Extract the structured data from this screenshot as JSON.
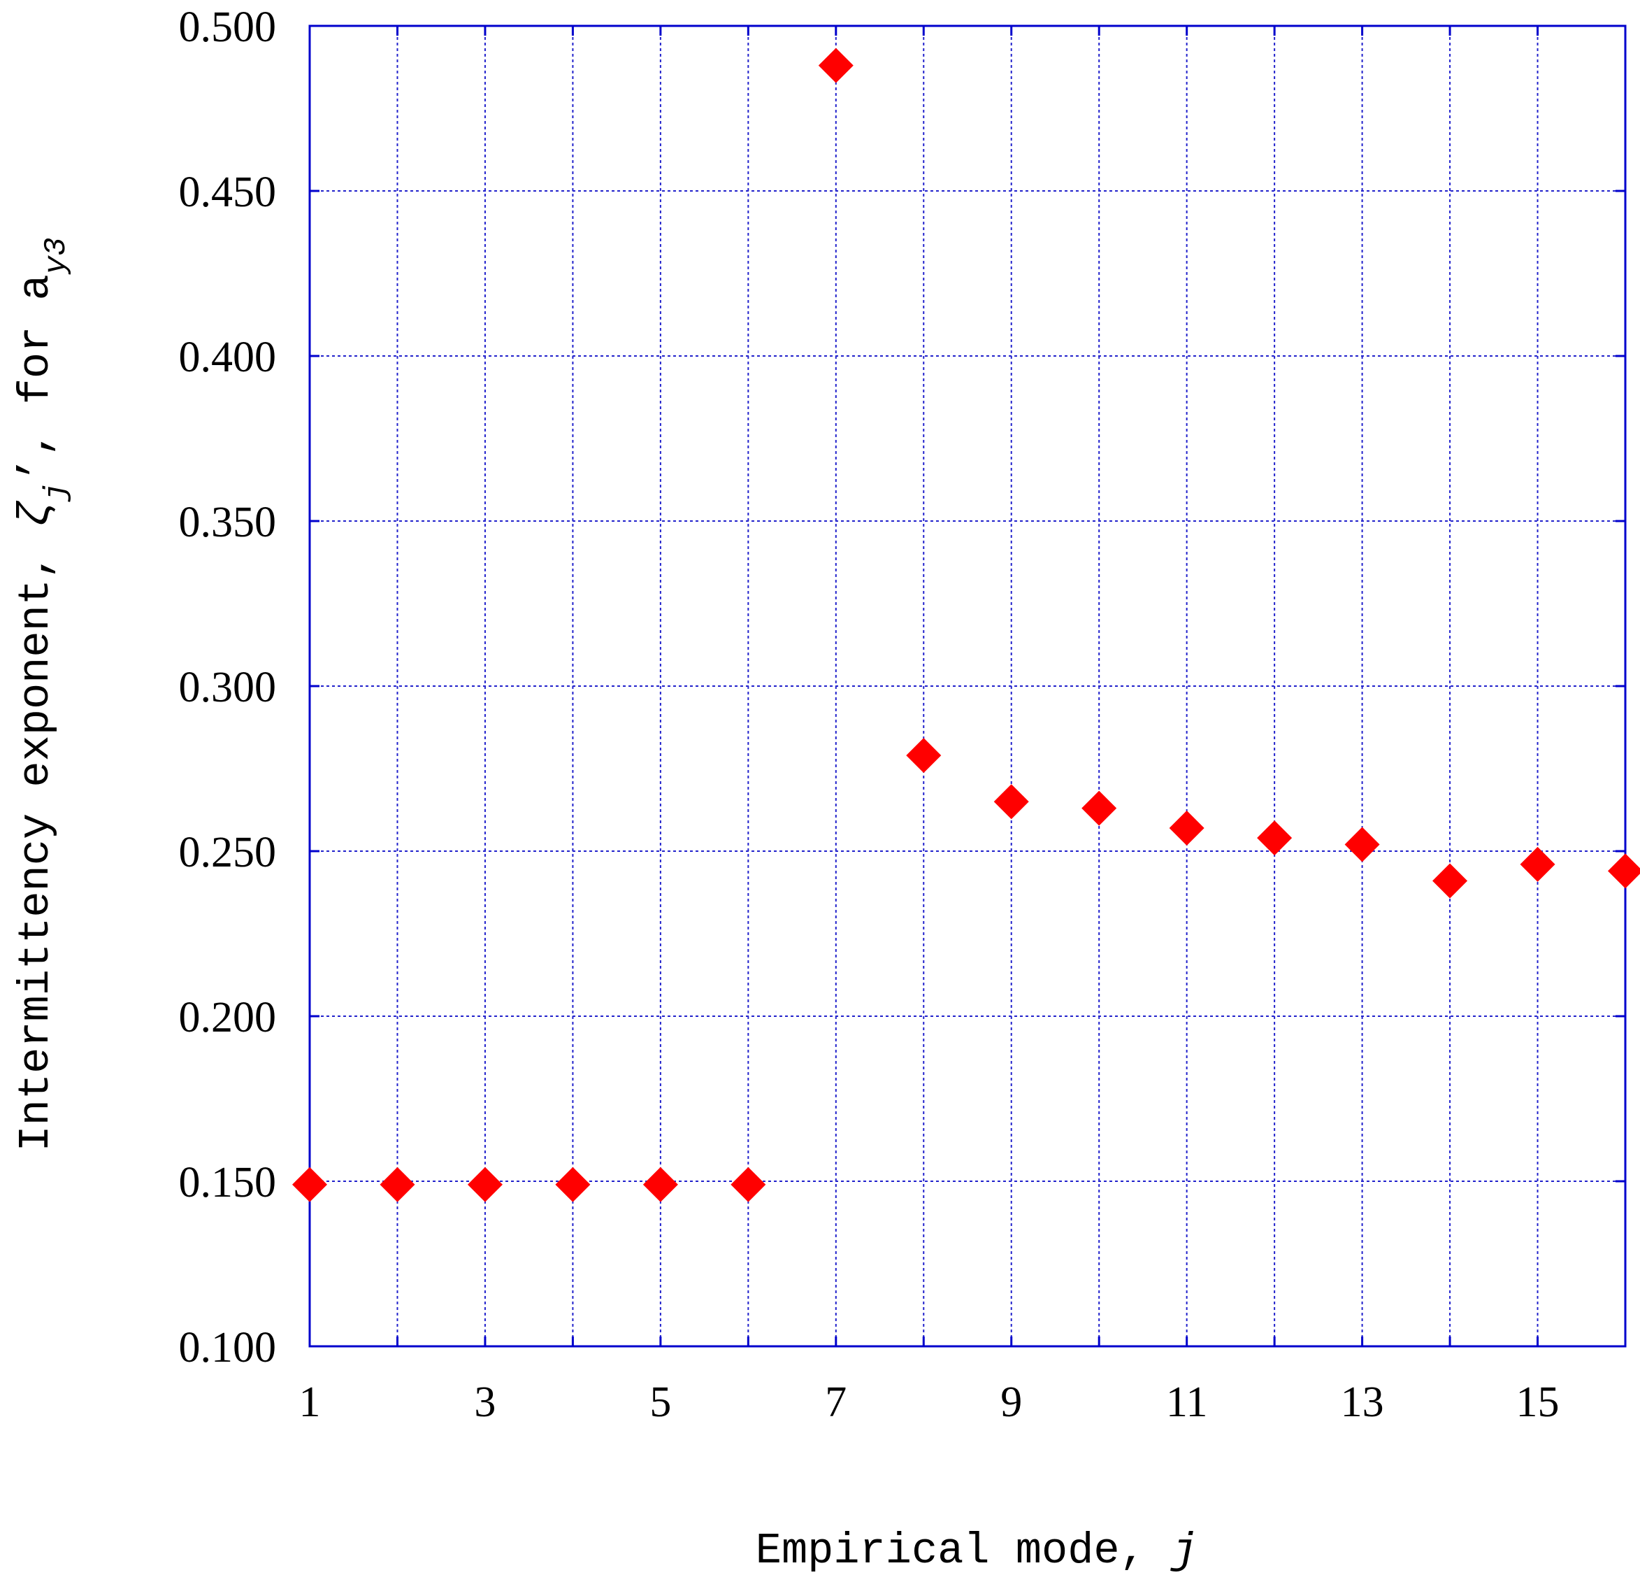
{
  "chart_data": {
    "type": "scatter",
    "xlabel": {
      "text": "Empirical mode, ",
      "symbol": "j"
    },
    "ylabel": {
      "prefix": "Intermittency exponent, ",
      "symbol": "ζ",
      "symbol_sub": "j",
      "middle": "’, for ",
      "var": "a",
      "var_sub": "y3"
    },
    "xlim": [
      1,
      16
    ],
    "ylim": [
      0.1,
      0.5
    ],
    "x_ticks": [
      1,
      3,
      5,
      7,
      9,
      11,
      13,
      15
    ],
    "x_grid": [
      1,
      2,
      3,
      4,
      5,
      6,
      7,
      8,
      9,
      10,
      11,
      12,
      13,
      14,
      15,
      16
    ],
    "y_ticks": [
      0.1,
      0.15,
      0.2,
      0.25,
      0.3,
      0.35,
      0.4,
      0.45,
      0.5
    ],
    "y_tick_labels": [
      "0.100",
      "0.150",
      "0.200",
      "0.250",
      "0.300",
      "0.350",
      "0.400",
      "0.450",
      "0.500"
    ],
    "grid": true,
    "marker": "diamond",
    "colors": {
      "marker": "#ff0000",
      "axes": "#0000cc",
      "grid": "#2222cc"
    },
    "series": [
      {
        "x": [
          1,
          2,
          3,
          4,
          5,
          6,
          7,
          8,
          9,
          10,
          11,
          12,
          13,
          14,
          15,
          16
        ],
        "y": [
          0.149,
          0.149,
          0.149,
          0.149,
          0.149,
          0.149,
          0.488,
          0.279,
          0.265,
          0.263,
          0.257,
          0.254,
          0.252,
          0.241,
          0.246,
          0.244
        ]
      }
    ]
  }
}
